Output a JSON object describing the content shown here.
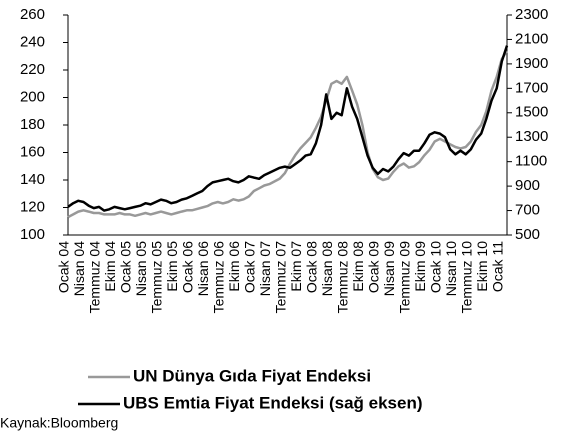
{
  "chart_data": {
    "type": "line",
    "source": "Kaynak:Bloomberg",
    "categories": [
      "Ocak 04",
      null,
      null,
      "Nisan 04",
      null,
      null,
      "Temmuz 04",
      null,
      null,
      "Ekim 04",
      null,
      null,
      "Ocak 05",
      null,
      null,
      "Nisan 05",
      null,
      null,
      "Temmuz 05",
      null,
      null,
      "Ekim 05",
      null,
      null,
      "Ocak 06",
      null,
      null,
      "Nisan 06",
      null,
      null,
      "Temmuz 06",
      null,
      null,
      "Ekim 06",
      null,
      null,
      "Ocak 07",
      null,
      null,
      "Nisan 07",
      null,
      null,
      "Temmuz 07",
      null,
      null,
      "Ekim 07",
      null,
      null,
      "Ocak 08",
      null,
      null,
      "Nisan 08",
      null,
      null,
      "Temmuz 08",
      null,
      null,
      "Ekim 08",
      null,
      null,
      "Ocak 09",
      null,
      null,
      "Nisan 09",
      null,
      null,
      "Temmuz 09",
      null,
      null,
      "Ekim 09",
      null,
      null,
      "Ocak 10",
      null,
      null,
      "Nisan 10",
      null,
      null,
      "Temmuz 10",
      null,
      null,
      "Ekim 10",
      null,
      null,
      "Ocak 11",
      null
    ],
    "series": [
      {
        "name": "UN Dünya Gıda Fiyat Endeksi",
        "color": "#999999",
        "axis": "y",
        "values": [
          113,
          115,
          117,
          118,
          117,
          116,
          116,
          115,
          115,
          115,
          116,
          115,
          115,
          114,
          115,
          116,
          115,
          116,
          117,
          116,
          115,
          116,
          117,
          118,
          118,
          119,
          120,
          121,
          123,
          124,
          123,
          124,
          126,
          125,
          126,
          128,
          132,
          134,
          136,
          137,
          139,
          141,
          145,
          152,
          158,
          163,
          167,
          171,
          178,
          186,
          198,
          210,
          212,
          210,
          215,
          205,
          195,
          180,
          160,
          148,
          142,
          140,
          141,
          146,
          150,
          152,
          149,
          150,
          153,
          158,
          162,
          168,
          170,
          168,
          166,
          164,
          163,
          164,
          168,
          175,
          180,
          190,
          205,
          215,
          228,
          234
        ]
      },
      {
        "name": "UBS Emtia Fiyat Endeksi (sağ eksen)",
        "color": "#000000",
        "axis": "y2",
        "values": [
          730,
          760,
          780,
          770,
          740,
          720,
          730,
          700,
          710,
          730,
          720,
          710,
          720,
          730,
          740,
          760,
          750,
          770,
          790,
          780,
          760,
          770,
          790,
          800,
          820,
          840,
          860,
          900,
          930,
          940,
          950,
          960,
          940,
          930,
          950,
          980,
          970,
          960,
          990,
          1010,
          1030,
          1050,
          1060,
          1050,
          1080,
          1110,
          1150,
          1160,
          1250,
          1400,
          1650,
          1450,
          1500,
          1480,
          1700,
          1550,
          1450,
          1300,
          1150,
          1050,
          1000,
          1040,
          1020,
          1060,
          1120,
          1170,
          1150,
          1190,
          1190,
          1250,
          1320,
          1340,
          1330,
          1300,
          1200,
          1160,
          1190,
          1160,
          1200,
          1280,
          1330,
          1450,
          1600,
          1700,
          1920,
          2050
        ]
      }
    ],
    "ylim": [
      100,
      260
    ],
    "yticks": [
      100,
      120,
      140,
      160,
      180,
      200,
      220,
      240,
      260
    ],
    "y2lim": [
      500,
      2300
    ],
    "y2ticks": [
      500,
      700,
      900,
      1100,
      1300,
      1500,
      1700,
      1900,
      2100,
      2300
    ]
  }
}
